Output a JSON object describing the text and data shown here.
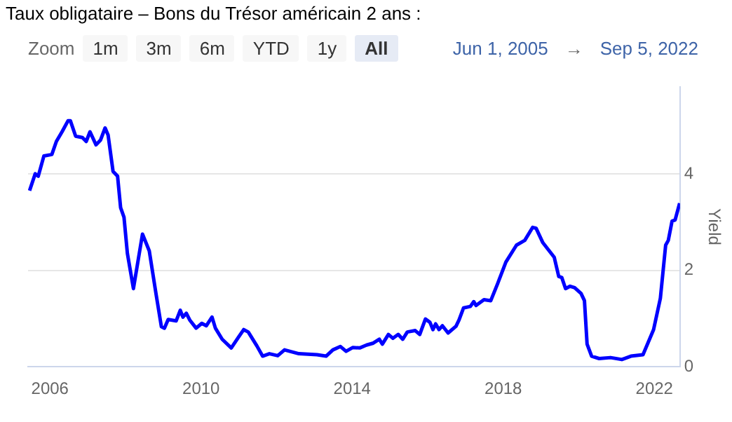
{
  "chart_data": {
    "type": "line",
    "title": "Taux obligataire – Bons du Trésor américain 2 ans :",
    "ylabel": "Yield",
    "annotations": [
      "Zoom",
      "1m",
      "3m",
      "6m",
      "YTD",
      "1y",
      "All",
      "Jun 1, 2005",
      "→",
      "Sep 5, 2022"
    ],
    "x": [
      2005.46,
      2005.61,
      2005.69,
      2005.84,
      2006.05,
      2006.17,
      2006.32,
      2006.48,
      2006.54,
      2006.68,
      2006.86,
      2006.96,
      2007.06,
      2007.22,
      2007.34,
      2007.46,
      2007.54,
      2007.67,
      2007.79,
      2007.87,
      2007.96,
      2008.05,
      2008.21,
      2008.45,
      2008.63,
      2008.81,
      2008.95,
      2009.03,
      2009.13,
      2009.34,
      2009.45,
      2009.52,
      2009.61,
      2009.7,
      2009.87,
      2010.02,
      2010.14,
      2010.29,
      2010.38,
      2010.56,
      2010.8,
      2010.98,
      2011.13,
      2011.25,
      2011.48,
      2011.63,
      2011.81,
      2012.03,
      2012.21,
      2012.59,
      2013.07,
      2013.31,
      2013.49,
      2013.69,
      2013.84,
      2014.02,
      2014.2,
      2014.38,
      2014.56,
      2014.72,
      2014.8,
      2014.96,
      2015.08,
      2015.22,
      2015.34,
      2015.46,
      2015.67,
      2015.79,
      2015.94,
      2016.06,
      2016.14,
      2016.21,
      2016.3,
      2016.39,
      2016.54,
      2016.75,
      2016.83,
      2016.95,
      2017.13,
      2017.22,
      2017.28,
      2017.49,
      2017.67,
      2017.85,
      2018.07,
      2018.35,
      2018.57,
      2018.78,
      2018.87,
      2019.05,
      2019.35,
      2019.47,
      2019.55,
      2019.65,
      2019.77,
      2019.89,
      2020.06,
      2020.15,
      2020.22,
      2020.34,
      2020.54,
      2020.84,
      2021.14,
      2021.38,
      2021.7,
      2021.98,
      2022.16,
      2022.3,
      2022.37,
      2022.47,
      2022.55,
      2022.67
    ],
    "series": [
      {
        "color": "#0000ff",
        "values": [
          3.65,
          4.0,
          3.95,
          4.37,
          4.4,
          4.67,
          4.87,
          5.1,
          5.1,
          4.78,
          4.75,
          4.67,
          4.87,
          4.6,
          4.7,
          4.95,
          4.8,
          4.05,
          3.95,
          3.3,
          3.1,
          2.35,
          1.62,
          2.75,
          2.4,
          1.5,
          0.83,
          0.8,
          0.98,
          0.95,
          1.17,
          1.03,
          1.11,
          0.97,
          0.8,
          0.9,
          0.85,
          1.03,
          0.8,
          0.57,
          0.39,
          0.6,
          0.77,
          0.72,
          0.43,
          0.22,
          0.27,
          0.23,
          0.35,
          0.27,
          0.25,
          0.22,
          0.35,
          0.42,
          0.32,
          0.4,
          0.39,
          0.45,
          0.49,
          0.57,
          0.47,
          0.67,
          0.59,
          0.67,
          0.57,
          0.72,
          0.75,
          0.67,
          0.99,
          0.92,
          0.77,
          0.89,
          0.77,
          0.85,
          0.7,
          0.84,
          0.97,
          1.22,
          1.25,
          1.35,
          1.27,
          1.39,
          1.37,
          1.72,
          2.17,
          2.52,
          2.62,
          2.89,
          2.87,
          2.57,
          2.27,
          1.87,
          1.85,
          1.62,
          1.67,
          1.64,
          1.52,
          1.37,
          0.47,
          0.22,
          0.17,
          0.19,
          0.15,
          0.22,
          0.25,
          0.77,
          1.42,
          2.52,
          2.62,
          3.02,
          3.04,
          3.39
        ]
      }
    ],
    "xlim": [
      2005.42,
      2022.68
    ],
    "xticks": [
      2006,
      2010,
      2014,
      2018,
      2022
    ],
    "ylim": [
      0,
      5.8
    ],
    "yticks": [
      0,
      2,
      4
    ],
    "grid": "y",
    "legend": false,
    "marker": "none",
    "line_style": "solid"
  }
}
